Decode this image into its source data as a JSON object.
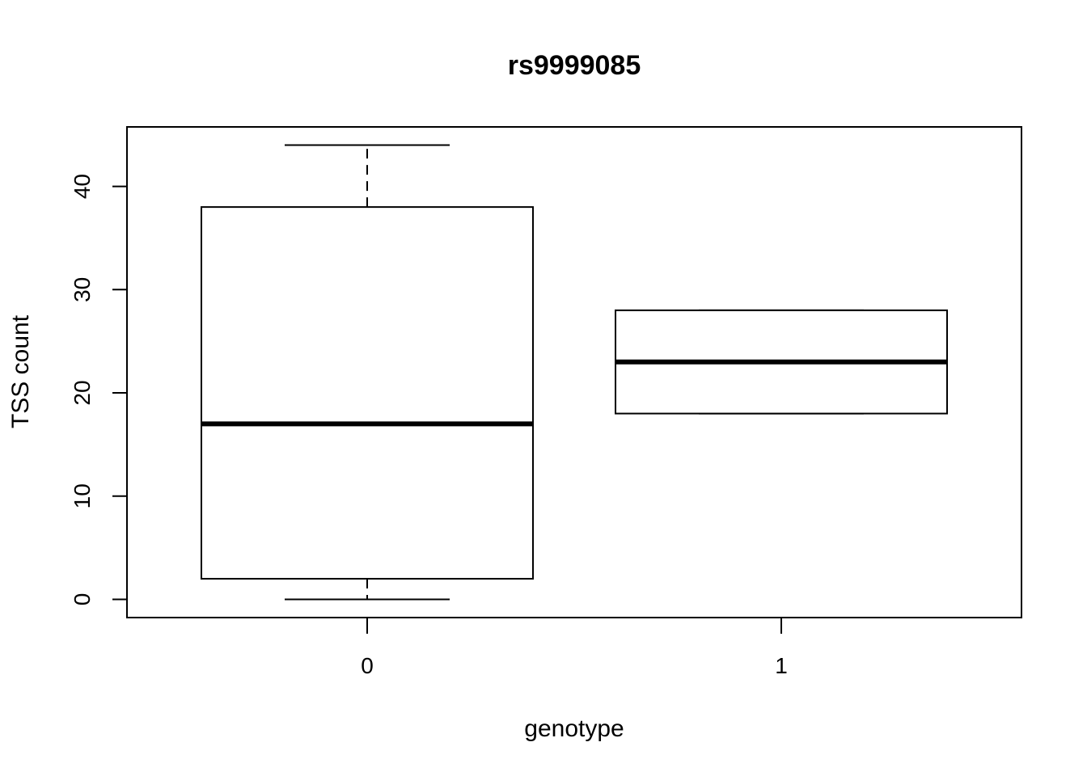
{
  "chart_data": {
    "type": "boxplot",
    "title": "rs9999085",
    "xlabel": "genotype",
    "ylabel": "TSS count",
    "categories": [
      "0",
      "1"
    ],
    "boxes": [
      {
        "category": "0",
        "whisker_low": 0,
        "q1": 2,
        "median": 17,
        "q3": 38,
        "whisker_high": 44
      },
      {
        "category": "1",
        "whisker_low": 18,
        "q1": 18,
        "median": 23,
        "q3": 28,
        "whisker_high": 28
      }
    ],
    "yticks": [
      0,
      10,
      20,
      30,
      40
    ],
    "ytick_labels": [
      "0",
      "10",
      "20",
      "30",
      "40"
    ],
    "ylim": [
      -1.76,
      45.76
    ],
    "xlim": [
      0.42,
      2.58
    ],
    "grid": false,
    "legend": "none"
  }
}
